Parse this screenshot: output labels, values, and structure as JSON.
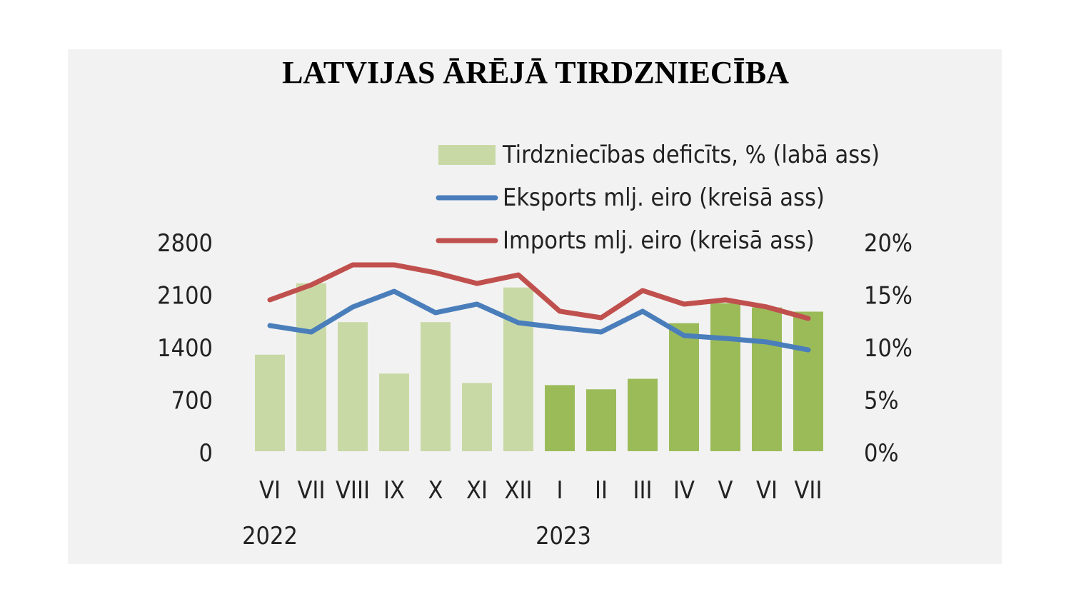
{
  "chart_data": {
    "type": "bar+line",
    "title": "LATVIJAS ĀRĒJĀ TIRDZNIECĪBA",
    "categories": [
      "VI",
      "VII",
      "VIII",
      "IX",
      "X",
      "XI",
      "XII",
      "I",
      "II",
      "III",
      "IV",
      "V",
      "VI",
      "VII"
    ],
    "year_labels": [
      {
        "label": "2022",
        "category_index": 0
      },
      {
        "label": "2023",
        "category_index": 7
      }
    ],
    "left_axis": {
      "ylim": [
        0,
        2800
      ],
      "ticks": [
        "0",
        "700",
        "1400",
        "2100",
        "2800"
      ]
    },
    "right_axis": {
      "ylim": [
        0,
        20
      ],
      "ticks": [
        "0%",
        "5%",
        "10%",
        "15%",
        "20%"
      ]
    },
    "grid": false,
    "legend_placement": "top-center",
    "series": [
      {
        "name": "Tirdzniecības deficīts, % (labā ass)",
        "type": "bar",
        "axis": "right",
        "color": "#c9d9a6",
        "highlight_color": "#9bbb59",
        "highlight_from_index": 7,
        "values": [
          9.2,
          16.0,
          12.3,
          7.4,
          12.3,
          6.5,
          15.6,
          6.3,
          5.9,
          6.9,
          12.2,
          14.1,
          13.7,
          13.3
        ]
      },
      {
        "name": "Eksports mlj. eiro (kreisā ass)",
        "type": "line",
        "axis": "left",
        "color": "#4a7ebb",
        "values": [
          1676,
          1590,
          1924,
          2133,
          1848,
          1962,
          1714,
          1648,
          1590,
          1867,
          1543,
          1505,
          1457,
          1352
        ]
      },
      {
        "name": "Imports mlj. eiro (kreisā ass)",
        "type": "line",
        "axis": "left",
        "color": "#c0504d",
        "values": [
          2019,
          2219,
          2486,
          2486,
          2381,
          2238,
          2352,
          1867,
          1781,
          2143,
          1962,
          2019,
          1924,
          1771
        ]
      }
    ]
  }
}
